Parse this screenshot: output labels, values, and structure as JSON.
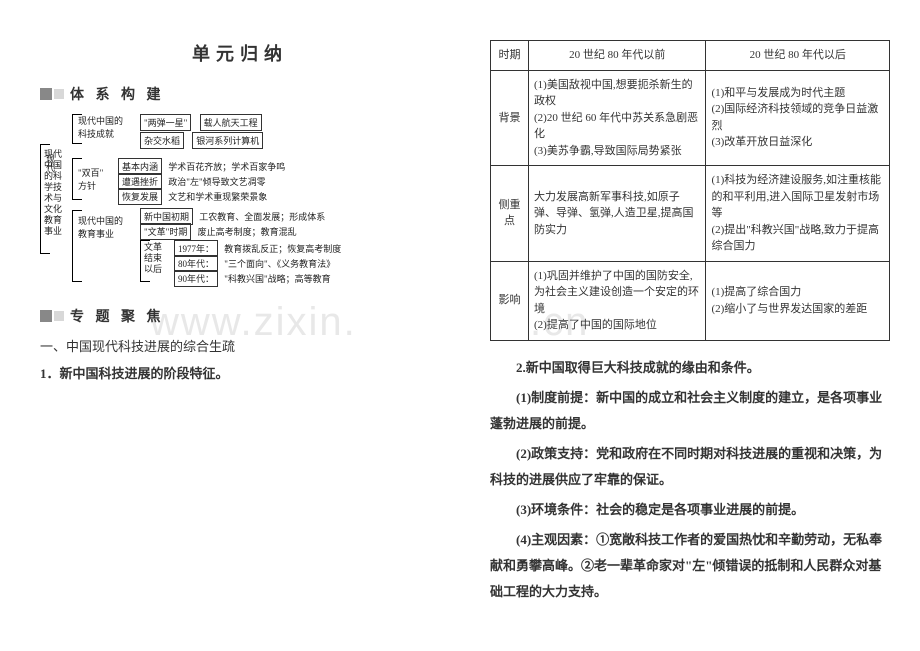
{
  "watermark": {
    "left": "www.zixin.",
    "right": ".cn"
  },
  "left": {
    "main_title": "单元归纳",
    "section1_title": "体 系 构 建",
    "section2_title": "专 题 聚 焦",
    "heading_a": "一、中国现代科技进展的综合生疏",
    "heading_a1": "1．新中国科技进展的阶段特征。"
  },
  "diagram": {
    "root_line1": "现代",
    "root_line2": "中国",
    "root_line3": "的科",
    "root_line4": "学技",
    "root_line5": "术与",
    "root_line6": "文化",
    "root_line7": "教育",
    "root_line8": "事业",
    "g1": "现代中国的",
    "g1b": "科技成就",
    "g1_item1": "\"两弹一星\"",
    "g1_item1_r": "载人航天工程",
    "g1_item2": "杂交水稻",
    "g1_item2_r": "银河系列计算机",
    "g2a": "\"双百\"",
    "g2b": "方针",
    "g2_r1a": "基本内涵",
    "g2_r1b": "学术百花齐放；学术百家争鸣",
    "g2_r2a": "遭遇挫折",
    "g2_r2b": "政治\"左\"倾导致文艺凋零",
    "g2_r3a": "恢复发展",
    "g2_r3b": "文艺和学术重现繁荣景象",
    "g3a": "现代中国的",
    "g3b": "教育事业",
    "g3_r1a": "新中国初期",
    "g3_r1b": "工农教育、全面发展；形成体系",
    "g3_r2a": "\"文革\"时期",
    "g3_r2b": "废止高考制度；教育混乱",
    "g3_sub": "文革",
    "g3_sub2": "结束",
    "g3_sub3": "以后",
    "g3_s1a": "1977年：",
    "g3_s1b": "教育拨乱反正；恢复高考制度",
    "g3_s2a": "80年代：",
    "g3_s2b": "\"三个面向\"、《义务教育法》",
    "g3_s3a": "90年代：",
    "g3_s3b": "\"科教兴国\"战略；高等教育"
  },
  "table": {
    "headers": [
      "时期",
      "20 世纪 80 年代以前",
      "20 世纪 80 年代以后"
    ],
    "rows": [
      {
        "head": "背景",
        "c1": "(1)美国敌视中国,想要扼杀新生的政权\n(2)20 世纪 60 年代中苏关系急剧恶化\n(3)美苏争霸,导致国际局势紧张",
        "c2": "(1)和平与发展成为时代主题\n(2)国际经济科技领域的竞争日益激烈\n(3)改革开放日益深化"
      },
      {
        "head": "侧重点",
        "c1": "大力发展高新军事科技,如原子弹、导弹、氢弹,人造卫星,提高国防实力",
        "c2": "(1)科技为经济建设服务,如注重核能的和平利用,进入国际卫星发射市场等\n(2)提出\"科教兴国\"战略,致力于提高综合国力"
      },
      {
        "head": "影响",
        "c1": "(1)巩固并维护了中国的国防安全,为社会主义建设创造一个安定的环境\n(2)提高了中国的国际地位",
        "c2": "(1)提高了综合国力\n(2)缩小了与世界发达国家的差距"
      }
    ]
  },
  "right_text": {
    "h2": "2.新中国取得巨大科技成就的缘由和条件。",
    "p1": "(1)制度前提：新中国的成立和社会主义制度的建立，是各项事业蓬勃进展的前提。",
    "p2": "(2)政策支持：党和政府在不同时期对科技进展的重视和决策，为科技的进展供应了牢靠的保证。",
    "p3": "(3)环境条件：社会的稳定是各项事业进展的前提。",
    "p4": "(4)主观因素：①宽敞科技工作者的爱国热忱和辛勤劳动，无私奉献和勇攀高峰。②老一辈革命家对\"左\"倾错误的抵制和人民群众对基础工程的大力支持。"
  },
  "colors": {
    "text": "#333333",
    "border": "#333333",
    "watermark": "#e8e8e8",
    "sq_dark": "#888888",
    "sq_light": "#d8d8d8"
  }
}
